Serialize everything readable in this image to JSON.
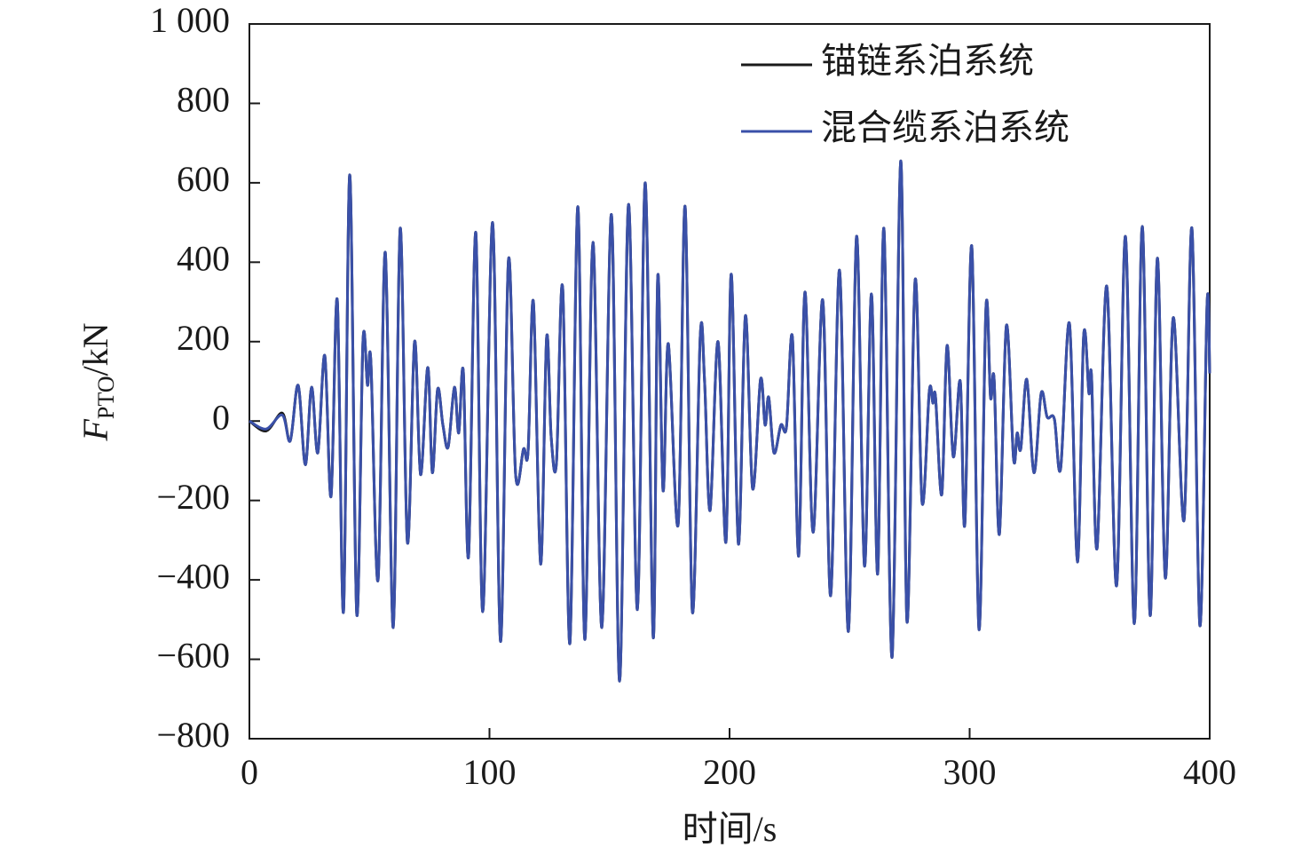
{
  "chart_data": {
    "type": "line",
    "ylabel": {
      "symbol": "F",
      "subscript": "PTO",
      "unit": "/kN"
    },
    "xlabel": "时间/s",
    "x": [
      0,
      7,
      13.7,
      17,
      20.3,
      23.3,
      25.9,
      28.5,
      31.4,
      34,
      36.6,
      39.2,
      41.8,
      44.7,
      47.3,
      49.2,
      50.6,
      53.6,
      56.6,
      59.9,
      62.8,
      65.8,
      68.8,
      71.3,
      74.3,
      76.2,
      78.4,
      80.6,
      82.8,
      85.4,
      87.2,
      89.1,
      91.3,
      94.3,
      97.2,
      101.3,
      104.6,
      107.9,
      110.9,
      114.2,
      116.1,
      118.3,
      121.3,
      123.8,
      125.7,
      127.9,
      130.5,
      133.5,
      136.8,
      139.7,
      143.1,
      146.8,
      150.8,
      154.2,
      157.9,
      161.6,
      164.9,
      168.2,
      170.1,
      172.3,
      174.5,
      178.6,
      181.5,
      184.5,
      187.8,
      189.6,
      191.9,
      195.2,
      198.5,
      200.7,
      203.7,
      206.6,
      209.6,
      212.9,
      214.8,
      216.3,
      218.5,
      221.4,
      223.7,
      226.2,
      228.8,
      231.4,
      234.8,
      238.8,
      242.1,
      245.8,
      249.5,
      252.9,
      256.2,
      259.1,
      261.7,
      264.3,
      267.7,
      271.3,
      273.9,
      277.3,
      280.2,
      283.2,
      284.7,
      285.8,
      288.4,
      290.6,
      293.2,
      296.1,
      298,
      300.9,
      303.9,
      306.8,
      308.7,
      310.2,
      312.4,
      315.3,
      318.3,
      319.8,
      321.3,
      323.8,
      326.8,
      329.8,
      332.3,
      335.3,
      337.9,
      341.6,
      344.9,
      347.5,
      349.7,
      350.8,
      353.1,
      357.1,
      361.2,
      364.9,
      368.6,
      371.9,
      375.2,
      378.2,
      381.5,
      384.8,
      389.3,
      392.6,
      395.9,
      398.9,
      400
    ],
    "series": [
      {
        "name": "锚链系泊系统",
        "color": "#1a1a1a",
        "values": [
          0,
          -25,
          20,
          -50,
          90,
          -110,
          85,
          -80,
          165,
          -190,
          305,
          -480,
          620,
          -485,
          200,
          90,
          150,
          -400,
          425,
          -520,
          485,
          -305,
          200,
          -135,
          135,
          -130,
          80,
          -10,
          -65,
          85,
          -30,
          125,
          -340,
          475,
          -480,
          500,
          -555,
          405,
          -135,
          -70,
          -75,
          300,
          -360,
          210,
          -40,
          -105,
          335,
          -560,
          540,
          -550,
          450,
          -520,
          520,
          -655,
          545,
          -475,
          600,
          -545,
          365,
          -175,
          195,
          -260,
          540,
          -480,
          215,
          100,
          -225,
          200,
          -305,
          370,
          -310,
          265,
          -170,
          105,
          -10,
          60,
          -80,
          -10,
          -15,
          210,
          -340,
          325,
          -280,
          305,
          -440,
          380,
          -530,
          465,
          -365,
          320,
          -385,
          485,
          -595,
          655,
          -505,
          355,
          -205,
          75,
          45,
          60,
          -185,
          190,
          -90,
          100,
          -260,
          440,
          -525,
          285,
          60,
          105,
          -285,
          240,
          -95,
          -30,
          -70,
          105,
          -130,
          70,
          10,
          5,
          -120,
          245,
          -355,
          215,
          70,
          110,
          -320,
          340,
          -415,
          465,
          -510,
          490,
          -490,
          410,
          -395,
          260,
          -250,
          485,
          -515,
          295,
          120
        ]
      },
      {
        "name": "混合缆系泊系统",
        "color": "#3a50a8",
        "values": [
          0,
          -20,
          15,
          -50,
          90,
          -110,
          85,
          -80,
          165,
          -190,
          305,
          -480,
          620,
          -485,
          200,
          90,
          150,
          -400,
          425,
          -520,
          485,
          -305,
          200,
          -135,
          135,
          -130,
          80,
          -10,
          -65,
          85,
          -30,
          125,
          -340,
          475,
          -480,
          500,
          -555,
          405,
          -135,
          -70,
          -75,
          300,
          -360,
          210,
          -40,
          -105,
          335,
          -560,
          540,
          -550,
          450,
          -520,
          520,
          -655,
          545,
          -475,
          600,
          -545,
          365,
          -175,
          195,
          -260,
          540,
          -480,
          215,
          100,
          -225,
          200,
          -305,
          370,
          -310,
          265,
          -170,
          105,
          -10,
          60,
          -80,
          -10,
          -15,
          210,
          -340,
          325,
          -280,
          305,
          -440,
          380,
          -530,
          465,
          -365,
          320,
          -385,
          485,
          -595,
          655,
          -505,
          355,
          -205,
          75,
          45,
          60,
          -185,
          190,
          -90,
          100,
          -260,
          440,
          -525,
          285,
          60,
          105,
          -285,
          240,
          -95,
          -30,
          -70,
          105,
          -130,
          70,
          10,
          5,
          -120,
          245,
          -355,
          215,
          70,
          110,
          -320,
          340,
          -415,
          465,
          -510,
          490,
          -490,
          410,
          -395,
          260,
          -250,
          485,
          -515,
          295,
          120
        ]
      }
    ],
    "xlim": [
      0,
      400
    ],
    "xticks": [
      0,
      100,
      200,
      300,
      400
    ],
    "ylim": [
      -800,
      1000
    ],
    "yticks": [
      {
        "value": -800,
        "label": "−800"
      },
      {
        "value": -600,
        "label": "−600"
      },
      {
        "value": -400,
        "label": "−400"
      },
      {
        "value": -200,
        "label": "−200"
      },
      0,
      200,
      400,
      600,
      800,
      {
        "value": 1000,
        "label": "1 000"
      }
    ],
    "legend": "upper-right",
    "grid": false
  }
}
